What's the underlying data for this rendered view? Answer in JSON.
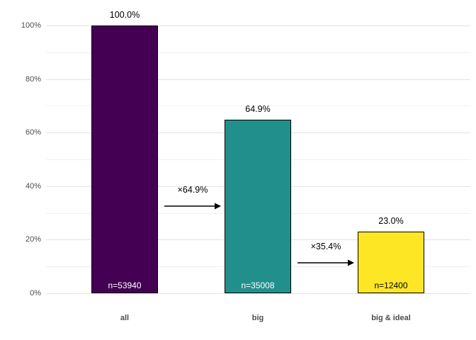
{
  "chart_data": {
    "type": "bar",
    "title": "",
    "xlabel": "",
    "ylabel": "",
    "categories": [
      "all",
      "big",
      "big & ideal"
    ],
    "values": [
      100.0,
      64.9,
      23.0
    ],
    "value_labels": [
      "100.0%",
      "64.9%",
      "23.0%"
    ],
    "counts": [
      53940,
      35008,
      12400
    ],
    "count_labels": [
      "n=53940",
      "n=35008",
      "n=12400"
    ],
    "bar_colors": [
      "#440154",
      "#21908C",
      "#FDE725"
    ],
    "count_label_colors": [
      "#ffffff",
      "#ffffff",
      "#000000"
    ],
    "arrows": [
      {
        "label": "×64.9%",
        "from": "all",
        "to": "big"
      },
      {
        "label": "×35.4%",
        "from": "big",
        "to": "big & ideal"
      }
    ],
    "y_axis": {
      "range": [
        0,
        100
      ],
      "major_ticks": [
        0,
        20,
        40,
        60,
        80,
        100
      ],
      "tick_labels": [
        "0%",
        "20%",
        "40%",
        "60%",
        "80%",
        "100%"
      ],
      "minor_ticks": [
        10,
        30,
        50,
        70,
        90
      ],
      "format": "percent"
    },
    "grid": true,
    "legend": false,
    "colors": {
      "background": "#ffffff",
      "gridline_major": "#e3e3e3",
      "gridline_minor": "#f0f0f0",
      "axis_text": "#4d4d4d",
      "bar_border": "#000000",
      "arrow": "#000000"
    }
  }
}
